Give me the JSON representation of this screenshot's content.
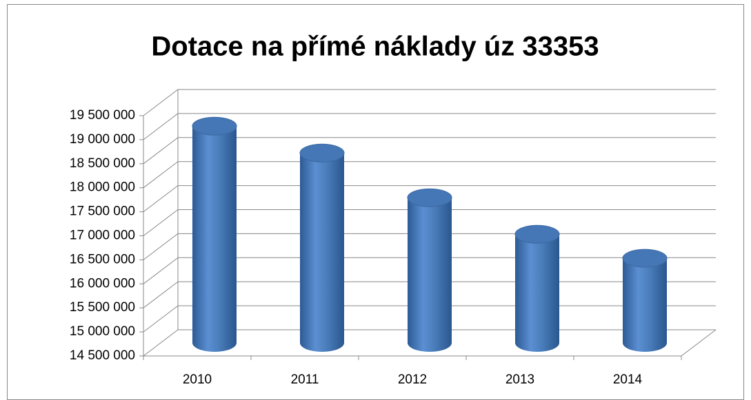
{
  "chart_data": {
    "type": "bar3d",
    "title": "Dotace na přímé náklady úz 33353",
    "categories": [
      "2010",
      "2011",
      "2012",
      "2013",
      "2014"
    ],
    "values": [
      19010000,
      18450000,
      17520000,
      16760000,
      16260000
    ],
    "color": "#4a7ebb",
    "ylim": [
      14500000,
      19500000
    ],
    "yticks": [
      {
        "value": 14500000,
        "label": "14 500 000"
      },
      {
        "value": 15000000,
        "label": "15 000 000"
      },
      {
        "value": 15500000,
        "label": "15 500 000"
      },
      {
        "value": 16000000,
        "label": "16 000 000"
      },
      {
        "value": 16500000,
        "label": "16 500 000"
      },
      {
        "value": 17000000,
        "label": "17 000 000"
      },
      {
        "value": 17500000,
        "label": "17 500 000"
      },
      {
        "value": 18000000,
        "label": "18 000 000"
      },
      {
        "value": 18500000,
        "label": "18 500 000"
      },
      {
        "value": 19000000,
        "label": "19 000 000"
      },
      {
        "value": 19500000,
        "label": "19 500 000"
      }
    ],
    "grid": true
  }
}
